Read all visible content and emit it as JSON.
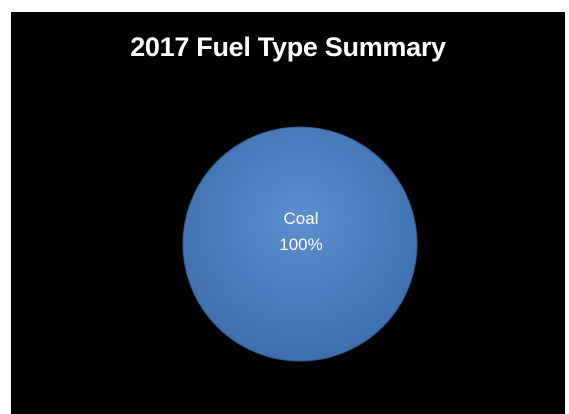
{
  "chart_data": {
    "type": "pie",
    "title": "2017 Fuel Type Summary",
    "slices": [
      {
        "label": "Coal",
        "value": 100,
        "percent_label": "100%",
        "color": "#4a7ebb"
      }
    ]
  },
  "colors": {
    "background": "#000000",
    "title": "#ffffff",
    "slice_label": "#ffffff"
  }
}
